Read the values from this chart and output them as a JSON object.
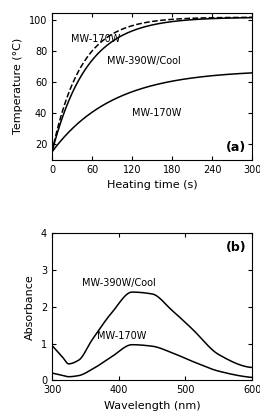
{
  "panel_a": {
    "title": "(a)",
    "xlabel": "Heating time (s)",
    "ylabel": "Temperature (°C)",
    "xlim": [
      0,
      300
    ],
    "ylim": [
      10,
      105
    ],
    "xticks": [
      0,
      60,
      120,
      180,
      240,
      300
    ],
    "yticks": [
      20,
      40,
      60,
      80,
      100
    ],
    "curves": [
      {
        "label": "MW-170W_top",
        "style": "dashed",
        "color": "black",
        "annotation": "MW-170W",
        "ann_x": 28,
        "ann_y": 88,
        "params": {
          "T0": 15,
          "Tmax": 102,
          "k": 0.023
        }
      },
      {
        "label": "MW-390W/Cool",
        "style": "solid",
        "color": "black",
        "annotation": "MW-390W/Cool",
        "ann_x": 82,
        "ann_y": 74,
        "params": {
          "T0": 15,
          "Tmax": 102,
          "k": 0.019
        }
      },
      {
        "label": "MW-170W_bottom",
        "style": "solid",
        "color": "black",
        "annotation": "MW-170W",
        "ann_x": 120,
        "ann_y": 40,
        "params": {
          "T0": 15,
          "Tmax": 68,
          "k": 0.011
        }
      }
    ]
  },
  "panel_b": {
    "title": "(b)",
    "xlabel": "Wavelength (nm)",
    "ylabel": "Absorbance",
    "xlim": [
      300,
      600
    ],
    "ylim": [
      0,
      4
    ],
    "xticks": [
      300,
      400,
      500,
      600
    ],
    "yticks": [
      0,
      1,
      2,
      3,
      4
    ],
    "curves": [
      {
        "label": "MW-390W/Cool",
        "annotation": "MW-390W/Cool",
        "ann_x": 345,
        "ann_y": 2.65,
        "color": "black",
        "knots_x": [
          300,
          315,
          325,
          340,
          360,
          390,
          420,
          450,
          480,
          510,
          550,
          600
        ],
        "knots_y": [
          0.95,
          0.65,
          0.45,
          0.55,
          1.1,
          1.85,
          2.4,
          2.35,
          1.9,
          1.4,
          0.7,
          0.35
        ]
      },
      {
        "label": "MW-170W",
        "annotation": "MW-170W",
        "ann_x": 368,
        "ann_y": 1.2,
        "color": "black",
        "knots_x": [
          300,
          315,
          325,
          340,
          360,
          390,
          420,
          450,
          480,
          510,
          550,
          600
        ],
        "knots_y": [
          0.2,
          0.14,
          0.1,
          0.13,
          0.3,
          0.65,
          0.97,
          0.93,
          0.75,
          0.52,
          0.25,
          0.08
        ]
      }
    ]
  }
}
